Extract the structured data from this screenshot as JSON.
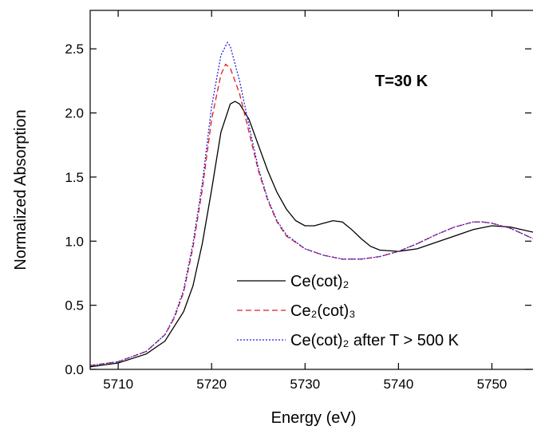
{
  "chart_data": {
    "type": "line",
    "xlabel": "Energy (eV)",
    "ylabel": "Normalized Absorption",
    "annotation": "T=30 K",
    "xlim": [
      5707,
      5754.4
    ],
    "ylim": [
      0,
      2.8
    ],
    "xticks": [
      5710,
      5720,
      5730,
      5740,
      5750
    ],
    "yticks": [
      {
        "value": 0,
        "label": "0.0"
      },
      0.5,
      {
        "value": 1,
        "label": "1.0"
      },
      1.5,
      {
        "value": 2,
        "label": "2.0"
      },
      2.5
    ],
    "series": [
      {
        "name": "Ce(cot)₂",
        "color": "#000000",
        "dash": "solid",
        "x": [
          5707,
          5710,
          5713,
          5715,
          5717,
          5718,
          5719,
          5720,
          5721,
          5722,
          5722.5,
          5723,
          5724,
          5725,
          5726,
          5727,
          5728,
          5729,
          5730,
          5731,
          5732,
          5733,
          5734,
          5735,
          5736,
          5737,
          5738,
          5740,
          5742,
          5744,
          5746,
          5748,
          5750,
          5752,
          5754.4
        ],
        "values": [
          0.02,
          0.05,
          0.12,
          0.22,
          0.45,
          0.65,
          0.98,
          1.4,
          1.85,
          2.07,
          2.09,
          2.07,
          1.95,
          1.75,
          1.55,
          1.38,
          1.25,
          1.16,
          1.12,
          1.12,
          1.14,
          1.16,
          1.15,
          1.09,
          1.02,
          0.96,
          0.93,
          0.92,
          0.94,
          0.99,
          1.04,
          1.09,
          1.12,
          1.11,
          1.07
        ]
      },
      {
        "name": "Ce₂(cot)₃",
        "color": "#e41a1c",
        "dash": "dashed",
        "x": [
          5707,
          5710,
          5713,
          5715,
          5716,
          5717,
          5718,
          5719,
          5720,
          5721,
          5721.5,
          5722,
          5723,
          5724,
          5725,
          5726,
          5727,
          5728,
          5730,
          5732,
          5734,
          5736,
          5738,
          5740,
          5742,
          5744,
          5746,
          5748,
          5749,
          5750,
          5752,
          5754.4
        ],
        "values": [
          0.03,
          0.06,
          0.14,
          0.27,
          0.4,
          0.6,
          0.95,
          1.4,
          1.95,
          2.3,
          2.38,
          2.35,
          2.15,
          1.85,
          1.55,
          1.32,
          1.15,
          1.04,
          0.94,
          0.89,
          0.86,
          0.86,
          0.88,
          0.92,
          0.98,
          1.05,
          1.11,
          1.15,
          1.15,
          1.14,
          1.1,
          1.02
        ]
      },
      {
        "name": "Ce(cot)₂ after T > 500 K",
        "color": "#2020e0",
        "dash": "dotted",
        "x": [
          5707,
          5710,
          5713,
          5715,
          5716,
          5717,
          5718,
          5719,
          5720,
          5721,
          5721.7,
          5722,
          5723,
          5724,
          5725,
          5726,
          5727,
          5728,
          5730,
          5732,
          5734,
          5736,
          5738,
          5740,
          5742,
          5744,
          5746,
          5748,
          5749,
          5750,
          5752,
          5754.4
        ],
        "values": [
          0.03,
          0.06,
          0.14,
          0.27,
          0.41,
          0.62,
          0.98,
          1.45,
          2.05,
          2.45,
          2.55,
          2.52,
          2.25,
          1.9,
          1.57,
          1.33,
          1.16,
          1.05,
          0.94,
          0.89,
          0.86,
          0.86,
          0.88,
          0.92,
          0.98,
          1.05,
          1.11,
          1.15,
          1.15,
          1.14,
          1.1,
          1.02
        ]
      }
    ]
  }
}
